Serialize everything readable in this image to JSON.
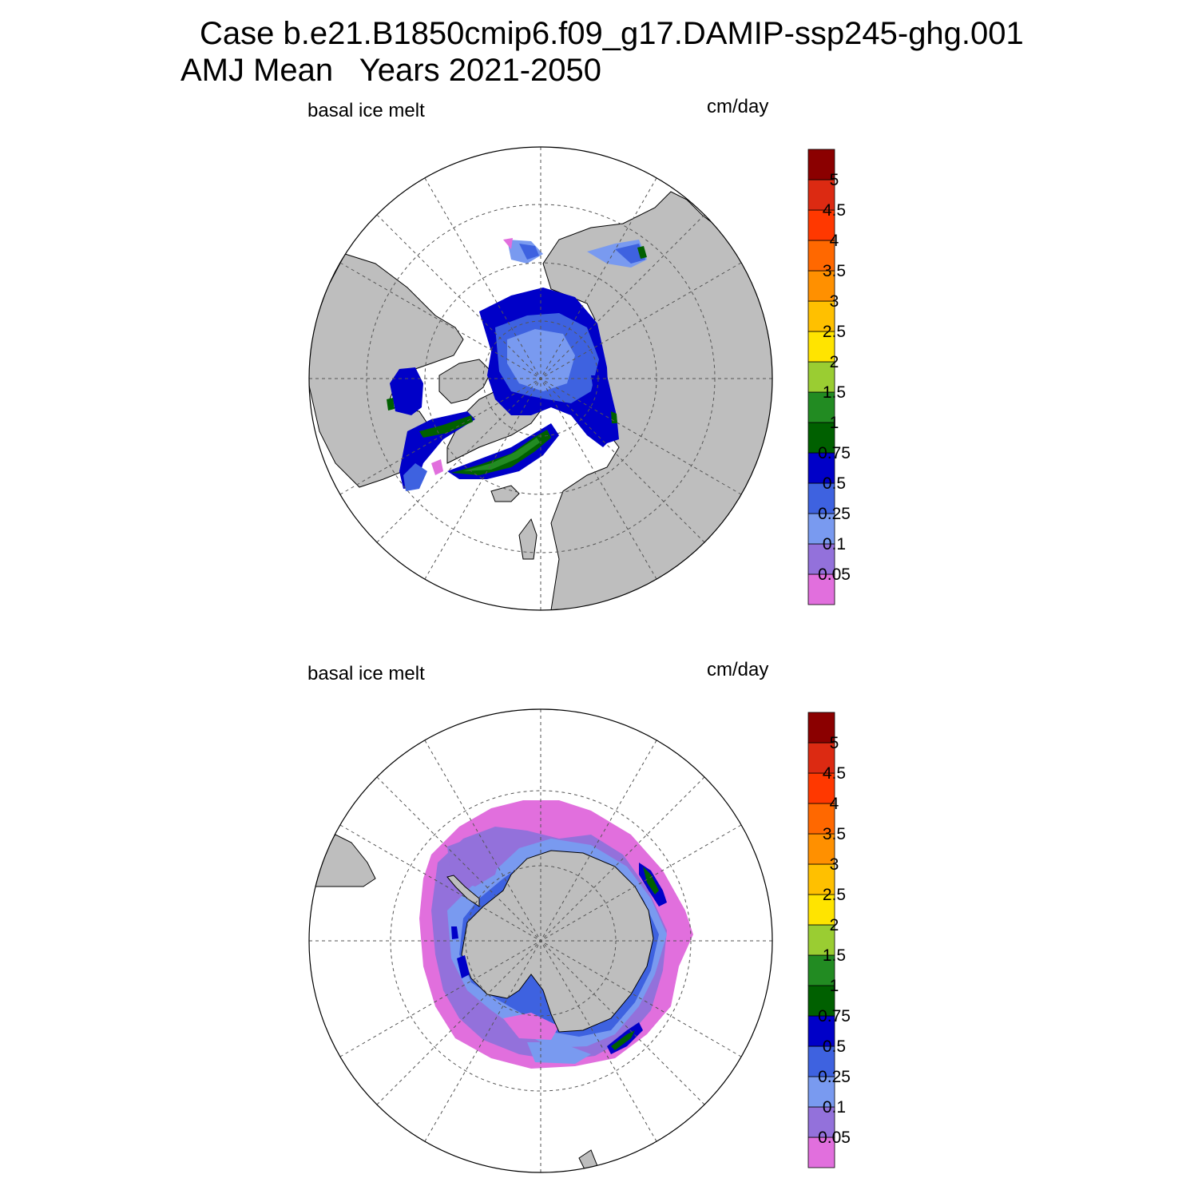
{
  "title": {
    "line1": "Case b.e21.B1850cmip6.f09_g17.DAMIP-ssp245-ghg.001",
    "line2": "AMJ Mean   Years 2021-2050"
  },
  "panels": [
    {
      "id": "north",
      "variable_label": "basal ice melt",
      "units_label": "cm/day",
      "hemisphere": "north"
    },
    {
      "id": "south",
      "variable_label": "basal ice melt",
      "units_label": "cm/day",
      "hemisphere": "south"
    }
  ],
  "colorbar": {
    "levels": [
      "0.05",
      "0.1",
      "0.25",
      "0.5",
      "0.75",
      "1",
      "1.5",
      "2",
      "2.5",
      "3",
      "3.5",
      "4",
      "4.5",
      "5"
    ],
    "colors": [
      "#e16fdd",
      "#9371db",
      "#799af0",
      "#3e62e0",
      "#0000c8",
      "#006000",
      "#228b22",
      "#9acd32",
      "#ffe400",
      "#ffc000",
      "#ff9000",
      "#ff6800",
      "#ff3800",
      "#dc2a12",
      "#8b0000"
    ]
  },
  "map_colors": {
    "land": "#bebebe",
    "ocean_no_ice": "#ffffff",
    "grid": "#555555"
  }
}
